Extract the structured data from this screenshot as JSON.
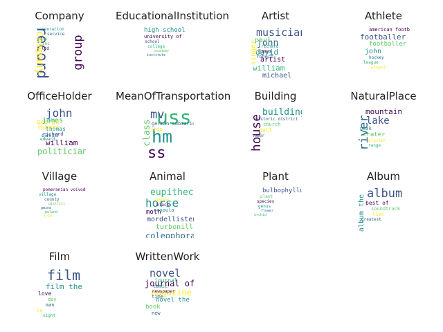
{
  "palette": [
    "#440154",
    "#3b528b",
    "#21918c",
    "#5ec962",
    "#fde725",
    "#31688e",
    "#35b779"
  ],
  "panels": [
    {
      "title": "Company",
      "words": [
        {
          "t": "record",
          "c": 1,
          "s": 21,
          "r": 90
        },
        {
          "t": "group",
          "c": 0,
          "s": 17,
          "r": 270
        },
        {
          "t": "company",
          "c": 4,
          "s": 15,
          "r": 90
        },
        {
          "t": "corporation",
          "c": 2,
          "s": 6
        },
        {
          "t": "service",
          "c": 5,
          "s": 6
        },
        {
          "t": "bank",
          "c": 3,
          "s": 6
        },
        {
          "t": "inc",
          "c": 6,
          "s": 6
        },
        {
          "t": "ltd",
          "c": 0,
          "s": 6
        }
      ]
    },
    {
      "title": "EducationalInstitution",
      "words": [
        {
          "t": "high school",
          "c": 2,
          "s": 9
        },
        {
          "t": "university of",
          "c": 0,
          "s": 7
        },
        {
          "t": "school",
          "c": 1,
          "s": 6
        },
        {
          "t": "college",
          "c": 6,
          "s": 6
        },
        {
          "t": "academy",
          "c": 3,
          "s": 5
        },
        {
          "t": "institute",
          "c": 5,
          "s": 5
        }
      ]
    },
    {
      "title": "Artist",
      "words": [
        {
          "t": "musician",
          "c": 1,
          "s": 15
        },
        {
          "t": "john",
          "c": 5,
          "s": 13
        },
        {
          "t": "david",
          "c": 2,
          "s": 11
        },
        {
          "t": "artist",
          "c": 0,
          "s": 10
        },
        {
          "t": "william",
          "c": 6,
          "s": 11
        },
        {
          "t": "michael",
          "c": 1,
          "s": 10
        },
        {
          "t": "singer",
          "c": 4,
          "s": 10,
          "r": 270
        },
        {
          "t": "paul",
          "c": 3,
          "s": 10
        },
        {
          "t": "richard",
          "c": 2,
          "s": 6
        },
        {
          "t": "james",
          "c": 0,
          "s": 6
        },
        {
          "t": "robert",
          "c": 5,
          "s": 7
        }
      ]
    },
    {
      "title": "Athlete",
      "words": [
        {
          "t": "american football",
          "c": 0,
          "s": 7
        },
        {
          "t": "footballer",
          "c": 1,
          "s": 11
        },
        {
          "t": "footballer",
          "c": 3,
          "s": 9
        },
        {
          "t": "john",
          "c": 2,
          "s": 10
        },
        {
          "t": "hockey",
          "c": 5,
          "s": 6
        },
        {
          "t": "league",
          "c": 6,
          "s": 6
        },
        {
          "t": "player",
          "c": 4,
          "s": 6
        }
      ]
    },
    {
      "title": "OfficeHolder",
      "words": [
        {
          "t": "john",
          "c": 1,
          "s": 16
        },
        {
          "t": "george",
          "c": 4,
          "s": 9
        },
        {
          "t": "thomas",
          "c": 2,
          "s": 8
        },
        {
          "t": "david",
          "c": 5,
          "s": 8
        },
        {
          "t": "william",
          "c": 0,
          "s": 11
        },
        {
          "t": "politician",
          "c": 3,
          "s": 12
        },
        {
          "t": "james",
          "c": 6,
          "s": 10
        },
        {
          "t": "robert",
          "c": 4,
          "s": 9
        },
        {
          "t": "richard",
          "c": 1,
          "s": 7
        },
        {
          "t": "edward",
          "c": 2,
          "s": 6
        }
      ]
    },
    {
      "title": "MeanOfTransportation",
      "words": [
        {
          "t": "uss",
          "c": 6,
          "s": 28
        },
        {
          "t": "hm",
          "c": 2,
          "s": 25
        },
        {
          "t": "class",
          "c": 3,
          "s": 13,
          "r": 270
        },
        {
          "t": "ss",
          "c": 0,
          "s": 22
        },
        {
          "t": "mv",
          "c": 1,
          "s": 17
        },
        {
          "t": "german submarine",
          "c": 5,
          "s": 7
        },
        {
          "t": "ship",
          "c": 4,
          "s": 7
        }
      ]
    },
    {
      "title": "Building",
      "words": [
        {
          "t": "house",
          "c": 0,
          "s": 18,
          "r": 270
        },
        {
          "t": "building",
          "c": 2,
          "s": 13
        },
        {
          "t": "historic district",
          "c": 1,
          "s": 6
        },
        {
          "t": "church",
          "c": 3,
          "s": 7
        },
        {
          "t": "hall",
          "c": 4,
          "s": 8
        },
        {
          "t": "tower",
          "c": 5,
          "s": 6
        }
      ]
    },
    {
      "title": "NaturalPlace",
      "words": [
        {
          "t": "mountain",
          "c": 0,
          "s": 11
        },
        {
          "t": "lake",
          "c": 1,
          "s": 14
        },
        {
          "t": "river",
          "c": 5,
          "s": 17,
          "r": 270
        },
        {
          "t": "peak",
          "c": 2,
          "s": 7
        },
        {
          "t": "crater",
          "c": 3,
          "s": 9
        },
        {
          "t": "glacier",
          "c": 4,
          "s": 6
        },
        {
          "t": "range",
          "c": 6,
          "s": 6
        }
      ]
    },
    {
      "title": "Village",
      "words": [
        {
          "t": "pomeranian voivodeship",
          "c": 0,
          "s": 6
        },
        {
          "t": "village",
          "c": 2,
          "s": 6
        },
        {
          "t": "county",
          "c": 1,
          "s": 6
        },
        {
          "t": "district",
          "c": 3,
          "s": 5
        },
        {
          "t": "gmina",
          "c": 5,
          "s": 5
        },
        {
          "t": "poland",
          "c": 6,
          "s": 5
        },
        {
          "t": "iran",
          "c": 4,
          "s": 5
        }
      ]
    },
    {
      "title": "Animal",
      "words": [
        {
          "t": "eupithecia",
          "c": 6,
          "s": 13
        },
        {
          "t": "horse",
          "c": 2,
          "s": 16
        },
        {
          "t": "moth",
          "c": 0,
          "s": 9
        },
        {
          "t": "mordellistena",
          "c": 1,
          "s": 10
        },
        {
          "t": "turbonilla",
          "c": 3,
          "s": 10
        },
        {
          "t": "coleophora",
          "c": 5,
          "s": 12
        },
        {
          "t": "genus",
          "c": 4,
          "s": 7
        },
        {
          "t": "black",
          "c": 0,
          "s": 6
        },
        {
          "t": "scopula",
          "c": 2,
          "s": 7
        }
      ]
    },
    {
      "title": "Plant",
      "words": [
        {
          "t": "bulbophyllum",
          "c": 1,
          "s": 9
        },
        {
          "t": "plant",
          "c": 3,
          "s": 6
        },
        {
          "t": "species",
          "c": 0,
          "s": 6
        },
        {
          "t": "genus",
          "c": 2,
          "s": 6
        },
        {
          "t": "flower",
          "c": 5,
          "s": 5
        },
        {
          "t": "orchid",
          "c": 6,
          "s": 5
        }
      ]
    },
    {
      "title": "Album",
      "words": [
        {
          "t": "album",
          "c": 1,
          "s": 17
        },
        {
          "t": "album the",
          "c": 2,
          "s": 10,
          "r": 270
        },
        {
          "t": "best of",
          "c": 0,
          "s": 8
        },
        {
          "t": "soundtrack",
          "c": 3,
          "s": 7
        },
        {
          "t": "live",
          "c": 4,
          "s": 7
        },
        {
          "t": "greatest",
          "c": 5,
          "s": 6
        }
      ]
    },
    {
      "title": "Film",
      "words": [
        {
          "t": "film",
          "c": 1,
          "s": 20
        },
        {
          "t": "film the",
          "c": 2,
          "s": 11
        },
        {
          "t": "love",
          "c": 0,
          "s": 8
        },
        {
          "t": "day",
          "c": 3,
          "s": 7
        },
        {
          "t": "man",
          "c": 5,
          "s": 7
        },
        {
          "t": "la",
          "c": 4,
          "s": 7
        },
        {
          "t": "night",
          "c": 6,
          "s": 6
        }
      ]
    },
    {
      "title": "WrittenWork",
      "words": [
        {
          "t": "novel",
          "c": 1,
          "s": 15
        },
        {
          "t": "journal of",
          "c": 0,
          "s": 12
        },
        {
          "t": "magazine",
          "c": 4,
          "s": 12
        },
        {
          "t": "novel the",
          "c": 2,
          "s": 9
        },
        {
          "t": "book",
          "c": 3,
          "s": 9
        },
        {
          "t": "new",
          "c": 5,
          "s": 7
        },
        {
          "t": "journal",
          "c": 6,
          "s": 8
        },
        {
          "t": "comic",
          "c": 2,
          "s": 7
        },
        {
          "t": "newspaper",
          "c": 0,
          "s": 6
        },
        {
          "t": "time",
          "c": 5,
          "s": 7
        }
      ]
    }
  ]
}
